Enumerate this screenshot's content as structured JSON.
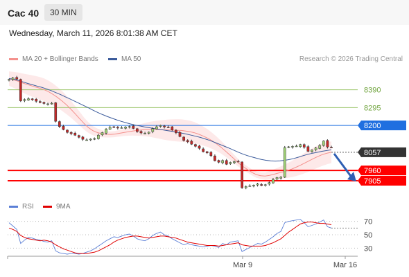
{
  "header": {
    "instrument": "Cac 40",
    "timeframe": "30 MIN",
    "datetime": "Wednesday, March 11, 2026 8:01:38 AM CET"
  },
  "main_legend": [
    {
      "label": "MA 20 + Bollinger Bands",
      "color": "#f4908c"
    },
    {
      "label": "MA 50",
      "color": "#3a5a9b"
    }
  ],
  "credit": "Research © 2026 Trading Central",
  "rsi_legend": [
    {
      "label": "RSI",
      "color": "#5b7fd6"
    },
    {
      "label": "9MA",
      "color": "#e00000"
    }
  ],
  "chart_data": [
    {
      "type": "candlestick",
      "title": "Cac 40",
      "timeframe": "30 MIN",
      "ylim": [
        7835,
        8470
      ],
      "x_tick_labels": [
        "Mar 9",
        "Mar 16"
      ],
      "levels": [
        {
          "value": 8390,
          "label": "8390",
          "kind": "resistance",
          "color": "#9dc66b"
        },
        {
          "value": 8295,
          "label": "8295",
          "kind": "resistance",
          "color": "#9dc66b"
        },
        {
          "value": 8200,
          "label": "8200",
          "kind": "pivot",
          "color": "#1f6fe0"
        },
        {
          "value": 7960,
          "label": "7960",
          "kind": "support",
          "color": "#ff0000"
        },
        {
          "value": 7905,
          "label": "7905",
          "kind": "support",
          "color": "#ff0000"
        }
      ],
      "current_price": {
        "value": 8057,
        "label": "8057"
      },
      "forecast_arrow": {
        "from": 8057,
        "to": 7920
      },
      "closes": [
        8445,
        8453,
        8447,
        8331,
        8338,
        8342,
        8337,
        8329,
        8322,
        8317,
        8315,
        8318,
        8222,
        8194,
        8178,
        8163,
        8156,
        8148,
        8137,
        8126,
        8123,
        8127,
        8130,
        8148,
        8162,
        8180,
        8190,
        8192,
        8186,
        8188,
        8192,
        8194,
        8184,
        8167,
        8160,
        8158,
        8164,
        8183,
        8193,
        8200,
        8192,
        8190,
        8176,
        8161,
        8141,
        8120,
        8113,
        8100,
        8089,
        8078,
        8060,
        8054,
        8039,
        8012,
        8004,
        8013,
        7993,
        8003,
        8007,
        8008,
        7868,
        7874,
        7878,
        7881,
        7888,
        7880,
        7884,
        7895,
        7912,
        7922,
        7924,
        8082,
        8086,
        8088,
        8090,
        8098,
        8084,
        8062,
        8069,
        8080,
        8093,
        8117,
        8085,
        8083
      ],
      "ma20": [
        8450,
        8443,
        8436,
        8427,
        8419,
        8412,
        8405,
        8398,
        8390,
        8379,
        8365,
        8349,
        8331,
        8310,
        8287,
        8262,
        8236,
        8210,
        8188,
        8172,
        8162,
        8156,
        8153,
        8152,
        8154,
        8158,
        8162,
        8166,
        8170,
        8173,
        8176,
        8178,
        8179,
        8179,
        8178,
        8177,
        8176,
        8175,
        8174,
        8173,
        8170,
        8166,
        8161,
        8153,
        8143,
        8132,
        8118,
        8102,
        8084,
        8064,
        8043,
        8021,
        7999,
        7981,
        7965,
        7950,
        7938,
        7932,
        7930,
        7934,
        7940,
        7946,
        7952,
        7959,
        7967,
        7977,
        7988,
        8000,
        8012,
        8024,
        8035,
        8045,
        8052,
        8057
      ],
      "ma50": [
        8450,
        8446,
        8440,
        8432,
        8424,
        8417,
        8410,
        8403,
        8395,
        8386,
        8375,
        8365,
        8353,
        8342,
        8330,
        8318,
        8306,
        8294,
        8281,
        8269,
        8258,
        8248,
        8239,
        8230,
        8222,
        8215,
        8208,
        8202,
        8197,
        8192,
        8188,
        8184,
        8180,
        8176,
        8172,
        8168,
        8164,
        8159,
        8154,
        8148,
        8142,
        8136,
        8128,
        8120,
        8110,
        8100,
        8090,
        8080,
        8069,
        8058,
        8048,
        8039,
        8032,
        8025,
        8019,
        8014,
        8011,
        8010,
        8011,
        8014,
        8018,
        8024,
        8031,
        8039,
        8046,
        8052,
        8057,
        8062,
        8066,
        8070
      ]
    },
    {
      "type": "line",
      "title": "RSI",
      "ylim": [
        20,
        80
      ],
      "y_ticks": [
        70,
        50,
        30
      ],
      "series": [
        {
          "name": "RSI",
          "values": [
            68,
            63,
            58,
            37,
            42,
            46,
            45,
            43,
            42,
            40,
            39,
            41,
            26,
            23,
            22,
            21,
            22,
            22,
            21,
            22,
            24,
            26,
            29,
            33,
            37,
            41,
            44,
            47,
            46,
            48,
            50,
            51,
            48,
            44,
            42,
            41,
            44,
            49,
            52,
            54,
            50,
            48,
            44,
            41,
            38,
            35,
            37,
            35,
            34,
            33,
            32,
            33,
            34,
            33,
            31,
            37,
            35,
            39,
            40,
            41,
            25,
            28,
            31,
            34,
            37,
            36,
            39,
            43,
            47,
            52,
            55,
            68,
            70,
            71,
            72,
            73,
            68,
            62,
            64,
            66,
            69,
            72,
            62,
            60
          ]
        },
        {
          "name": "9MA",
          "values": [
            60,
            58,
            55,
            49,
            46,
            44,
            43,
            42,
            41,
            42,
            41,
            39,
            35,
            32,
            29,
            27,
            25,
            23,
            22,
            22,
            22,
            23,
            24,
            26,
            29,
            32,
            35,
            39,
            42,
            44,
            46,
            47,
            48,
            48,
            47,
            46,
            45,
            46,
            47,
            48,
            48,
            47,
            46,
            45,
            43,
            41,
            39,
            38,
            37,
            36,
            35,
            34,
            34,
            34,
            33,
            34,
            35,
            36,
            37,
            38,
            35,
            34,
            33,
            33,
            33,
            33,
            34,
            36,
            38,
            41,
            44,
            49,
            54,
            58,
            62,
            66,
            68,
            69,
            69,
            68,
            67,
            67,
            66,
            65
          ]
        }
      ],
      "x_tick_labels": [
        "Mar 9",
        "Mar 16"
      ]
    }
  ]
}
